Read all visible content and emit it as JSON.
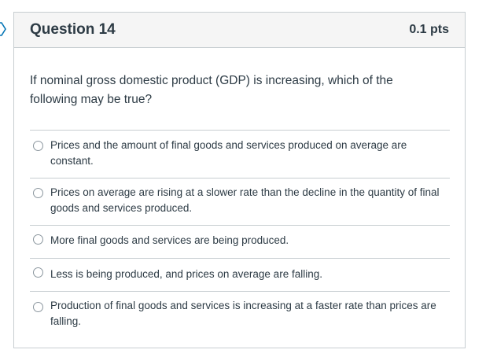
{
  "question": {
    "title": "Question 14",
    "points": "0.1 pts",
    "text": "If nominal gross domestic product (GDP) is increasing, which of the following may be true?"
  },
  "answers": [
    {
      "label": "Prices and the amount of final goods and services produced on average are constant.",
      "selected": false
    },
    {
      "label": "Prices on average are rising at a slower rate than the decline in the quantity of final goods and services produced.",
      "selected": false
    },
    {
      "label": "More final goods and services are being produced.",
      "selected": false
    },
    {
      "label": "Less is being produced, and prices on average are falling.",
      "selected": false
    },
    {
      "label": "Production of final goods and services is increasing at a faster rate than prices are falling.",
      "selected": false
    }
  ],
  "icons": {
    "flag": "flag-icon"
  },
  "colors": {
    "header_bg": "#f5f5f5",
    "border": "#c7cdd1",
    "text": "#2d3b45",
    "flag": "#0374b5"
  }
}
